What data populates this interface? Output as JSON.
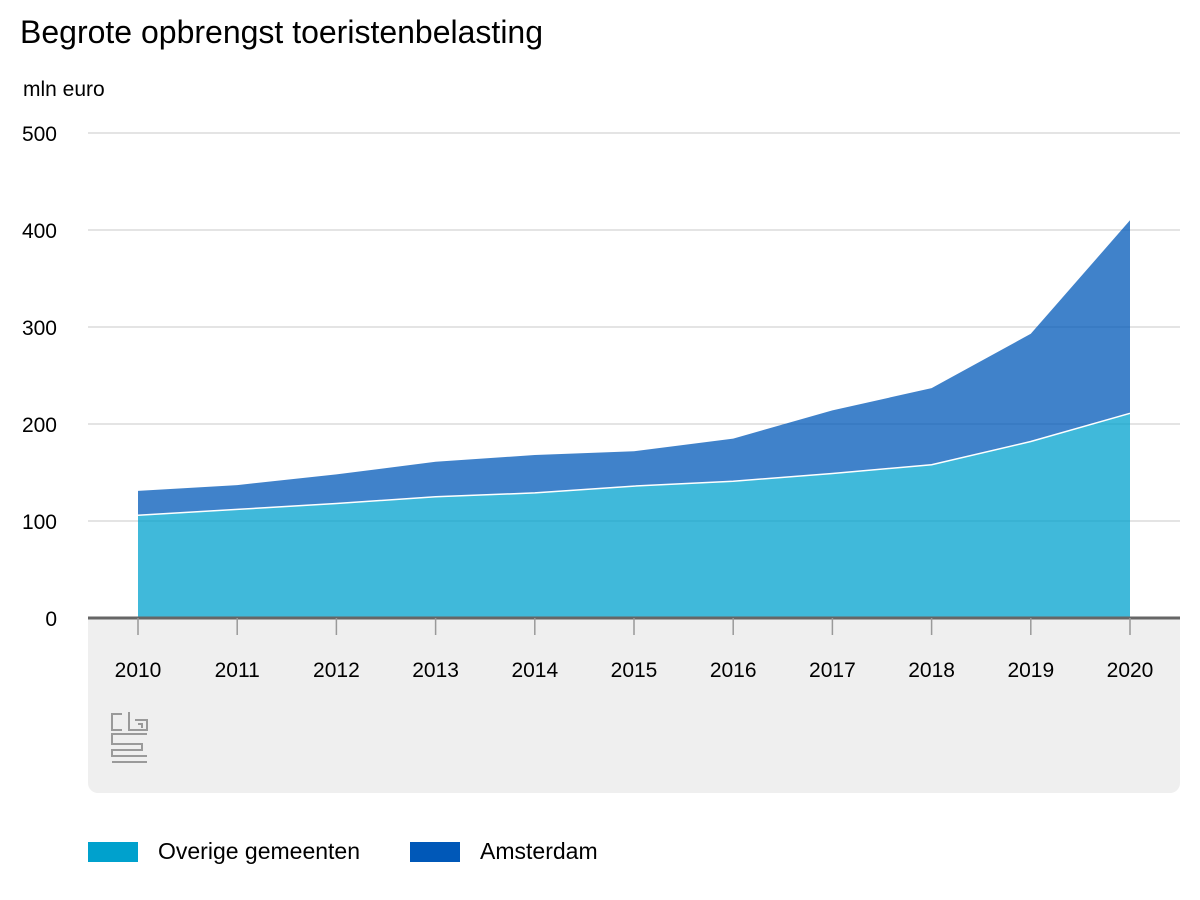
{
  "chart_data": {
    "type": "area",
    "stacked": true,
    "title": "Begrote opbrengst toeristenbelasting",
    "ylabel": "mln euro",
    "xlabel": "",
    "ylim": [
      0,
      500
    ],
    "yticks": [
      0,
      100,
      200,
      300,
      400,
      500
    ],
    "categories": [
      "2010",
      "2011",
      "2012",
      "2013",
      "2014",
      "2015",
      "2016",
      "2017",
      "2018",
      "2019",
      "2020"
    ],
    "series": [
      {
        "name": "Overige gemeenten",
        "color": "#00a1cd",
        "values": [
          106,
          112,
          118,
          125,
          129,
          136,
          141,
          149,
          158,
          182,
          211
        ]
      },
      {
        "name": "Amsterdam",
        "color": "#0058b8",
        "values": [
          25,
          25,
          30,
          36,
          39,
          36,
          44,
          65,
          79,
          111,
          199
        ]
      }
    ],
    "grid": true,
    "legend_position": "bottom-left"
  },
  "logo": {
    "text": "cbs",
    "icon": "cbs-logo-icon"
  }
}
